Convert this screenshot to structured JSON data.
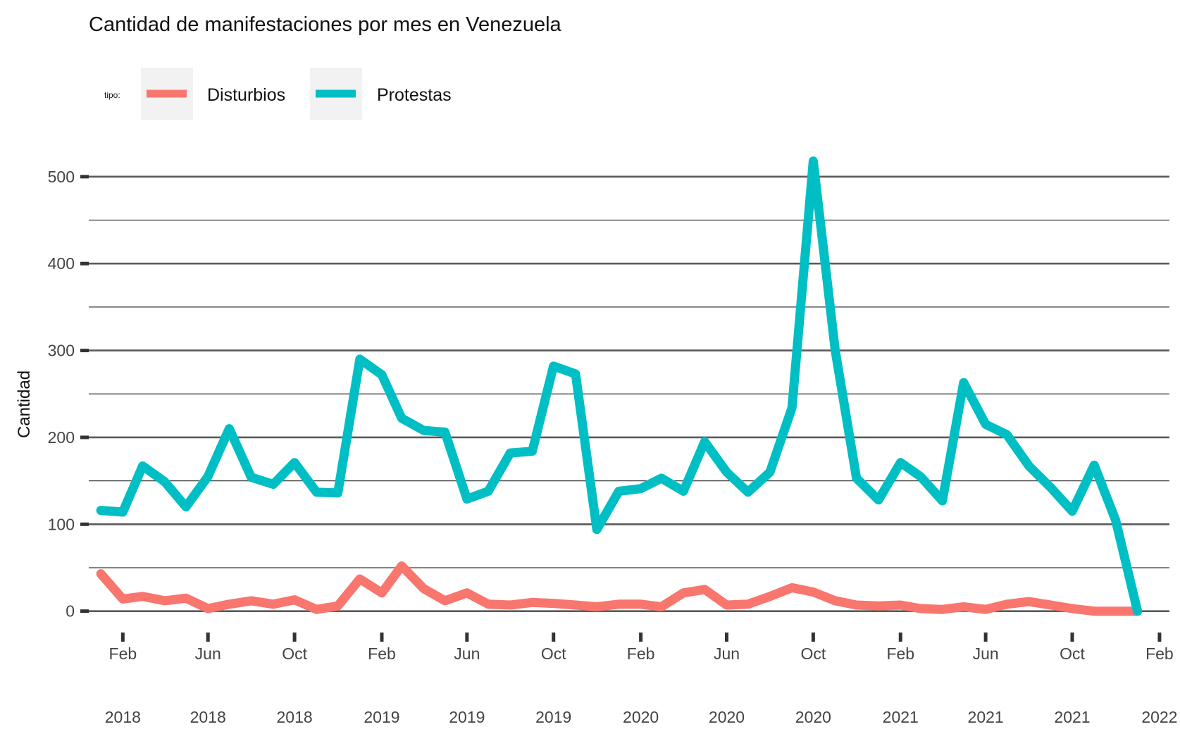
{
  "chart_data": {
    "type": "line",
    "title": "Cantidad de manifestaciones por mes en Venezuela",
    "ylabel": "Cantidad",
    "xlabel": "",
    "ylim": [
      -10,
      525
    ],
    "y_ticks": [
      0,
      100,
      200,
      300,
      400,
      500
    ],
    "y_tick_labels": [
      "0",
      "100",
      "200",
      "300",
      "400",
      "500"
    ],
    "grid": true,
    "legend": {
      "title": "tipo:",
      "position": "top-left",
      "entries": [
        "Disturbios",
        "Protestas"
      ]
    },
    "x_range": [
      "2017-12-15",
      "2022-02-15"
    ],
    "x_ticks": [
      "2018-02-01",
      "2018-06-01",
      "2018-10-01",
      "2019-02-01",
      "2019-06-01",
      "2019-10-01",
      "2020-02-01",
      "2020-06-01",
      "2020-10-01",
      "2021-02-01",
      "2021-06-01",
      "2021-10-01",
      "2022-02-01"
    ],
    "x_tick_labels": [
      {
        "month": "Feb",
        "year": "2018"
      },
      {
        "month": "Jun",
        "year": "2018"
      },
      {
        "month": "Oct",
        "year": "2018"
      },
      {
        "month": "Feb",
        "year": "2019"
      },
      {
        "month": "Jun",
        "year": "2019"
      },
      {
        "month": "Oct",
        "year": "2019"
      },
      {
        "month": "Feb",
        "year": "2020"
      },
      {
        "month": "Jun",
        "year": "2020"
      },
      {
        "month": "Oct",
        "year": "2020"
      },
      {
        "month": "Feb",
        "year": "2021"
      },
      {
        "month": "Jun",
        "year": "2021"
      },
      {
        "month": "Oct",
        "year": "2021"
      },
      {
        "month": "Feb",
        "year": "2022"
      }
    ],
    "x": [
      "2018-01-01",
      "2018-02-01",
      "2018-03-01",
      "2018-04-01",
      "2018-05-01",
      "2018-06-01",
      "2018-07-01",
      "2018-08-01",
      "2018-09-01",
      "2018-10-01",
      "2018-11-01",
      "2018-12-01",
      "2019-01-01",
      "2019-02-01",
      "2019-03-01",
      "2019-04-01",
      "2019-05-01",
      "2019-06-01",
      "2019-07-01",
      "2019-08-01",
      "2019-09-01",
      "2019-10-01",
      "2019-11-01",
      "2019-12-01",
      "2020-01-01",
      "2020-02-01",
      "2020-03-01",
      "2020-04-01",
      "2020-05-01",
      "2020-06-01",
      "2020-07-01",
      "2020-08-01",
      "2020-09-01",
      "2020-10-01",
      "2020-11-01",
      "2020-12-01",
      "2021-01-01",
      "2021-02-01",
      "2021-03-01",
      "2021-04-01",
      "2021-05-01",
      "2021-06-01",
      "2021-07-01",
      "2021-08-01",
      "2021-09-01",
      "2021-10-01",
      "2021-11-01",
      "2021-12-01",
      "2022-01-01"
    ],
    "series": [
      {
        "name": "Disturbios",
        "color": "#F8766D",
        "values": [
          43,
          14,
          17,
          12,
          15,
          3,
          8,
          12,
          8,
          13,
          2,
          6,
          37,
          21,
          52,
          26,
          12,
          21,
          8,
          7,
          10,
          9,
          7,
          5,
          8,
          8,
          5,
          21,
          25,
          7,
          8,
          17,
          27,
          22,
          12,
          7,
          6,
          7,
          3,
          2,
          5,
          2,
          8,
          11,
          7,
          3,
          0,
          0,
          0
        ]
      },
      {
        "name": "Protestas",
        "color": "#00BFC4",
        "values": [
          116,
          114,
          167,
          149,
          120,
          155,
          210,
          154,
          146,
          171,
          137,
          136,
          290,
          272,
          222,
          208,
          206,
          129,
          138,
          182,
          184,
          282,
          273,
          94,
          138,
          141,
          153,
          138,
          195,
          160,
          137,
          160,
          234,
          518,
          300,
          153,
          128,
          171,
          155,
          127,
          263,
          215,
          203,
          167,
          142,
          115,
          168,
          105,
          0
        ]
      }
    ]
  }
}
